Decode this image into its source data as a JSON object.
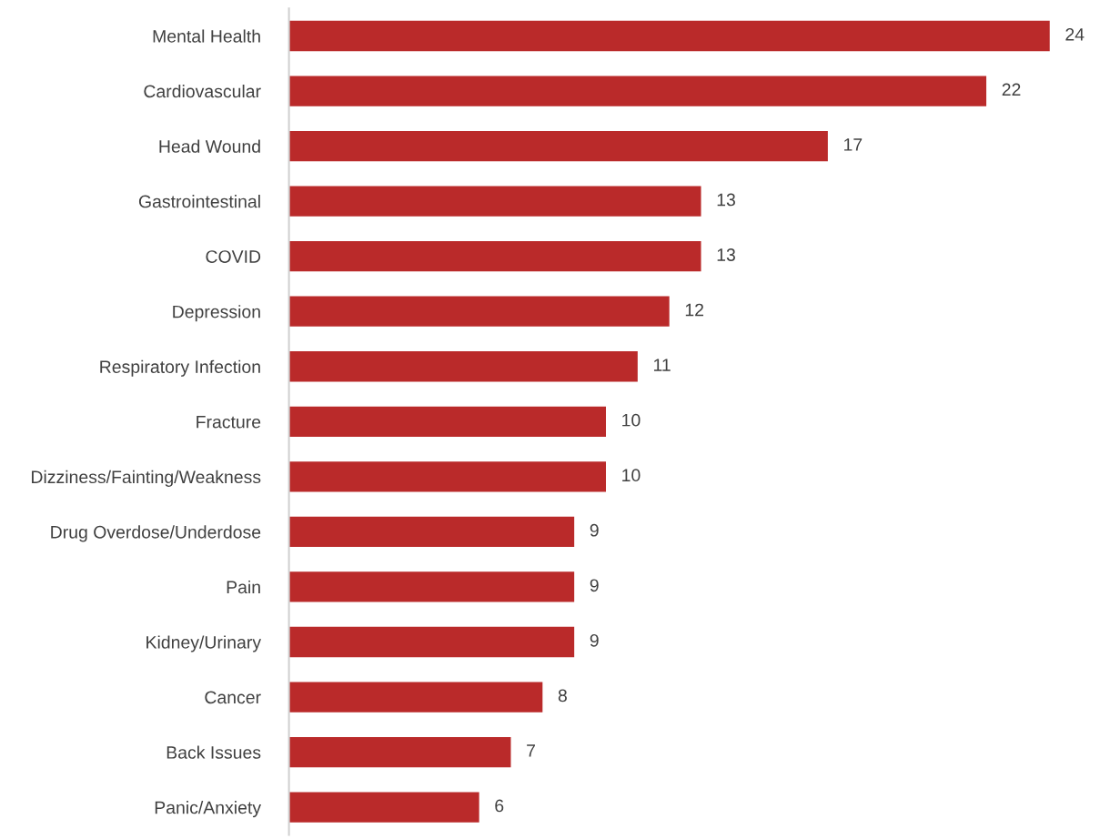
{
  "chart_data": {
    "type": "bar",
    "orientation": "horizontal",
    "data_labels": true,
    "grid": false,
    "legend": false,
    "color": "#ba2a2a",
    "categories": [
      "Mental Health",
      "Cardiovascular",
      "Head Wound",
      "Gastrointestinal",
      "COVID",
      "Depression",
      "Respiratory Infection",
      "Fracture",
      "Dizziness/Fainting/Weakness",
      "Drug Overdose/Underdose",
      "Pain",
      "Kidney/Urinary",
      "Cancer",
      "Back Issues",
      "Panic/Anxiety"
    ],
    "values": [
      24,
      22,
      17,
      13,
      13,
      12,
      11,
      10,
      10,
      9,
      9,
      9,
      8,
      7,
      6
    ]
  }
}
